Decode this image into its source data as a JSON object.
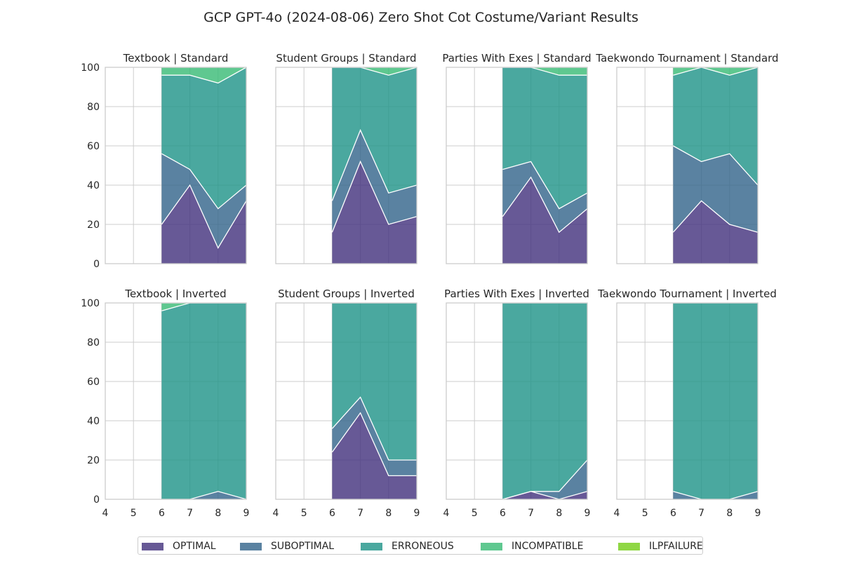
{
  "figure_title": "GCP GPT-4o (2024-08-06) Zero Shot Cot Costume/Variant Results",
  "colors": {
    "OPTIMAL": "#46357f",
    "SUBOPTIMAL": "#36668c",
    "ERRONEOUS": "#22958a",
    "INCOMPATIBLE": "#3cbc77",
    "ILPFAILURE": "#8fd744"
  },
  "legend": [
    "OPTIMAL",
    "SUBOPTIMAL",
    "ERRONEOUS",
    "INCOMPATIBLE",
    "ILPFAILURE"
  ],
  "chart_data": [
    {
      "type": "area",
      "title": "Textbook | Standard",
      "x": [
        6,
        7,
        8,
        9
      ],
      "xlim": [
        4,
        9
      ],
      "ylim": [
        0,
        100
      ],
      "xticks": [
        4,
        5,
        6,
        7,
        8,
        9
      ],
      "yticks": [
        0,
        20,
        40,
        60,
        80,
        100
      ],
      "stacked": true,
      "series": [
        {
          "name": "OPTIMAL",
          "values": [
            20,
            40,
            8,
            32
          ]
        },
        {
          "name": "SUBOPTIMAL",
          "values": [
            36,
            8,
            20,
            8
          ]
        },
        {
          "name": "ERRONEOUS",
          "values": [
            40,
            48,
            64,
            60
          ]
        },
        {
          "name": "INCOMPATIBLE",
          "values": [
            4,
            4,
            8,
            0
          ]
        },
        {
          "name": "ILPFAILURE",
          "values": [
            0,
            0,
            0,
            0
          ]
        }
      ]
    },
    {
      "type": "area",
      "title": "Student Groups | Standard",
      "x": [
        6,
        7,
        8,
        9
      ],
      "xlim": [
        4,
        9
      ],
      "ylim": [
        0,
        100
      ],
      "xticks": [
        4,
        5,
        6,
        7,
        8,
        9
      ],
      "yticks": [
        0,
        20,
        40,
        60,
        80,
        100
      ],
      "stacked": true,
      "series": [
        {
          "name": "OPTIMAL",
          "values": [
            16,
            52,
            20,
            24
          ]
        },
        {
          "name": "SUBOPTIMAL",
          "values": [
            16,
            16,
            16,
            16
          ]
        },
        {
          "name": "ERRONEOUS",
          "values": [
            68,
            32,
            60,
            60
          ]
        },
        {
          "name": "INCOMPATIBLE",
          "values": [
            0,
            0,
            4,
            0
          ]
        },
        {
          "name": "ILPFAILURE",
          "values": [
            0,
            0,
            0,
            0
          ]
        }
      ]
    },
    {
      "type": "area",
      "title": "Parties With Exes | Standard",
      "x": [
        6,
        7,
        8,
        9
      ],
      "xlim": [
        4,
        9
      ],
      "ylim": [
        0,
        100
      ],
      "xticks": [
        4,
        5,
        6,
        7,
        8,
        9
      ],
      "yticks": [
        0,
        20,
        40,
        60,
        80,
        100
      ],
      "stacked": true,
      "series": [
        {
          "name": "OPTIMAL",
          "values": [
            24,
            44,
            16,
            28
          ]
        },
        {
          "name": "SUBOPTIMAL",
          "values": [
            24,
            8,
            12,
            8
          ]
        },
        {
          "name": "ERRONEOUS",
          "values": [
            52,
            48,
            68,
            60
          ]
        },
        {
          "name": "INCOMPATIBLE",
          "values": [
            0,
            0,
            4,
            4
          ]
        },
        {
          "name": "ILPFAILURE",
          "values": [
            0,
            0,
            0,
            0
          ]
        }
      ]
    },
    {
      "type": "area",
      "title": "Taekwondo Tournament | Standard",
      "x": [
        6,
        7,
        8,
        9
      ],
      "xlim": [
        4,
        9
      ],
      "ylim": [
        0,
        100
      ],
      "xticks": [
        4,
        5,
        6,
        7,
        8,
        9
      ],
      "yticks": [
        0,
        20,
        40,
        60,
        80,
        100
      ],
      "stacked": true,
      "series": [
        {
          "name": "OPTIMAL",
          "values": [
            16,
            32,
            20,
            16
          ]
        },
        {
          "name": "SUBOPTIMAL",
          "values": [
            44,
            20,
            36,
            24
          ]
        },
        {
          "name": "ERRONEOUS",
          "values": [
            36,
            48,
            40,
            60
          ]
        },
        {
          "name": "INCOMPATIBLE",
          "values": [
            4,
            0,
            4,
            0
          ]
        },
        {
          "name": "ILPFAILURE",
          "values": [
            0,
            0,
            0,
            0
          ]
        }
      ]
    },
    {
      "type": "area",
      "title": "Textbook | Inverted",
      "x": [
        6,
        7,
        8,
        9
      ],
      "xlim": [
        4,
        9
      ],
      "ylim": [
        0,
        100
      ],
      "xticks": [
        4,
        5,
        6,
        7,
        8,
        9
      ],
      "yticks": [
        0,
        20,
        40,
        60,
        80,
        100
      ],
      "stacked": true,
      "series": [
        {
          "name": "OPTIMAL",
          "values": [
            0,
            0,
            0,
            0
          ]
        },
        {
          "name": "SUBOPTIMAL",
          "values": [
            0,
            0,
            4,
            0
          ]
        },
        {
          "name": "ERRONEOUS",
          "values": [
            96,
            100,
            96,
            100
          ]
        },
        {
          "name": "INCOMPATIBLE",
          "values": [
            4,
            0,
            0,
            0
          ]
        },
        {
          "name": "ILPFAILURE",
          "values": [
            0,
            0,
            0,
            0
          ]
        }
      ]
    },
    {
      "type": "area",
      "title": "Student Groups | Inverted",
      "x": [
        6,
        7,
        8,
        9
      ],
      "xlim": [
        4,
        9
      ],
      "ylim": [
        0,
        100
      ],
      "xticks": [
        4,
        5,
        6,
        7,
        8,
        9
      ],
      "yticks": [
        0,
        20,
        40,
        60,
        80,
        100
      ],
      "stacked": true,
      "series": [
        {
          "name": "OPTIMAL",
          "values": [
            24,
            44,
            12,
            12
          ]
        },
        {
          "name": "SUBOPTIMAL",
          "values": [
            12,
            8,
            8,
            8
          ]
        },
        {
          "name": "ERRONEOUS",
          "values": [
            64,
            48,
            80,
            80
          ]
        },
        {
          "name": "INCOMPATIBLE",
          "values": [
            0,
            0,
            0,
            0
          ]
        },
        {
          "name": "ILPFAILURE",
          "values": [
            0,
            0,
            0,
            0
          ]
        }
      ]
    },
    {
      "type": "area",
      "title": "Parties With Exes | Inverted",
      "x": [
        6,
        7,
        8,
        9
      ],
      "xlim": [
        4,
        9
      ],
      "ylim": [
        0,
        100
      ],
      "xticks": [
        4,
        5,
        6,
        7,
        8,
        9
      ],
      "yticks": [
        0,
        20,
        40,
        60,
        80,
        100
      ],
      "stacked": true,
      "series": [
        {
          "name": "OPTIMAL",
          "values": [
            0,
            4,
            0,
            4
          ]
        },
        {
          "name": "SUBOPTIMAL",
          "values": [
            0,
            0,
            4,
            16
          ]
        },
        {
          "name": "ERRONEOUS",
          "values": [
            100,
            96,
            96,
            80
          ]
        },
        {
          "name": "INCOMPATIBLE",
          "values": [
            0,
            0,
            0,
            0
          ]
        },
        {
          "name": "ILPFAILURE",
          "values": [
            0,
            0,
            0,
            0
          ]
        }
      ]
    },
    {
      "type": "area",
      "title": "Taekwondo Tournament | Inverted",
      "x": [
        6,
        7,
        8,
        9
      ],
      "xlim": [
        4,
        9
      ],
      "ylim": [
        0,
        100
      ],
      "xticks": [
        4,
        5,
        6,
        7,
        8,
        9
      ],
      "yticks": [
        0,
        20,
        40,
        60,
        80,
        100
      ],
      "stacked": true,
      "series": [
        {
          "name": "OPTIMAL",
          "values": [
            0,
            0,
            0,
            0
          ]
        },
        {
          "name": "SUBOPTIMAL",
          "values": [
            4,
            0,
            0,
            4
          ]
        },
        {
          "name": "ERRONEOUS",
          "values": [
            96,
            100,
            100,
            96
          ]
        },
        {
          "name": "INCOMPATIBLE",
          "values": [
            0,
            0,
            0,
            0
          ]
        },
        {
          "name": "ILPFAILURE",
          "values": [
            0,
            0,
            0,
            0
          ]
        }
      ]
    }
  ]
}
